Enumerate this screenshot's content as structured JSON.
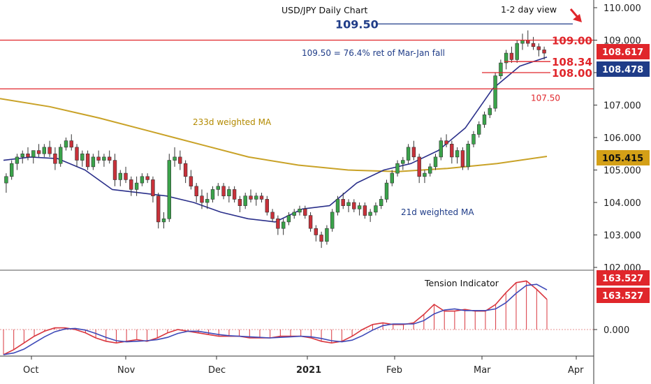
{
  "chart_data": {
    "type": "candlestick",
    "title": "USD/JPY Daily Chart",
    "subtitle": "1-2 day view",
    "x_ticks": [
      "Oct",
      "Nov",
      "Dec",
      "2021",
      "Feb",
      "Mar",
      "Apr"
    ],
    "y_ticks": [
      "102.000",
      "103.000",
      "104.000",
      "105.000",
      "106.000",
      "107.000",
      "108.000",
      "109.000",
      "110.000"
    ],
    "ylim": [
      101.9,
      110.3
    ],
    "levels": [
      {
        "label": "109.50",
        "value": 109.5,
        "color": "#1f3c88"
      },
      {
        "label": "109.00",
        "value": 109.0,
        "color": "#e0262b"
      },
      {
        "label": "108.34",
        "value": 108.34,
        "color": "#e0262b"
      },
      {
        "label": "108.00",
        "value": 108.0,
        "color": "#e0262b"
      },
      {
        "label": "107.50",
        "value": 107.5,
        "color": "#e0262b"
      }
    ],
    "annotations": [
      "109.50 = 76.4% ret of Mar-Jan fall",
      "233d weighted MA",
      "21d weighted MA"
    ],
    "price_tags": [
      {
        "label": "108.617",
        "value": 108.617,
        "color": "#e0262b"
      },
      {
        "label": "108.478",
        "value": 108.478,
        "color": "#1f3c88"
      },
      {
        "label": "105.415",
        "value": 105.415,
        "color": "#d4a017"
      }
    ],
    "ohlc": [
      [
        104.6,
        104.9,
        104.3,
        104.8
      ],
      [
        104.8,
        105.3,
        104.7,
        105.2
      ],
      [
        105.2,
        105.5,
        105.0,
        105.4
      ],
      [
        105.4,
        105.6,
        105.2,
        105.5
      ],
      [
        105.5,
        105.7,
        105.3,
        105.4
      ],
      [
        105.4,
        105.6,
        105.2,
        105.6
      ],
      [
        105.6,
        105.8,
        105.4,
        105.5
      ],
      [
        105.5,
        105.8,
        105.4,
        105.7
      ],
      [
        105.7,
        105.9,
        105.4,
        105.5
      ],
      [
        105.5,
        105.7,
        105.0,
        105.2
      ],
      [
        105.2,
        105.8,
        105.1,
        105.7
      ],
      [
        105.7,
        106.0,
        105.6,
        105.9
      ],
      [
        105.9,
        106.1,
        105.6,
        105.7
      ],
      [
        105.7,
        105.8,
        105.1,
        105.3
      ],
      [
        105.3,
        105.6,
        105.1,
        105.5
      ],
      [
        105.5,
        105.6,
        105.0,
        105.1
      ],
      [
        105.1,
        105.5,
        105.0,
        105.4
      ],
      [
        105.4,
        105.6,
        105.2,
        105.3
      ],
      [
        105.3,
        105.5,
        105.1,
        105.4
      ],
      [
        105.4,
        105.6,
        105.2,
        105.3
      ],
      [
        105.3,
        105.5,
        104.5,
        104.7
      ],
      [
        104.7,
        105.0,
        104.5,
        104.9
      ],
      [
        104.9,
        105.1,
        104.6,
        104.7
      ],
      [
        104.7,
        104.8,
        104.2,
        104.4
      ],
      [
        104.4,
        104.8,
        104.2,
        104.6
      ],
      [
        104.6,
        104.9,
        104.5,
        104.8
      ],
      [
        104.8,
        104.9,
        104.6,
        104.7
      ],
      [
        104.7,
        104.8,
        104.0,
        104.2
      ],
      [
        104.2,
        104.3,
        103.2,
        103.4
      ],
      [
        103.4,
        103.7,
        103.2,
        103.5
      ],
      [
        103.5,
        105.5,
        103.4,
        105.3
      ],
      [
        105.3,
        105.7,
        105.1,
        105.4
      ],
      [
        105.4,
        105.6,
        105.0,
        105.2
      ],
      [
        105.2,
        105.3,
        104.6,
        104.8
      ],
      [
        104.8,
        105.0,
        104.4,
        104.5
      ],
      [
        104.5,
        104.6,
        104.0,
        104.2
      ],
      [
        104.2,
        104.4,
        103.8,
        104.0
      ],
      [
        104.0,
        104.3,
        103.8,
        104.1
      ],
      [
        104.1,
        104.5,
        104.0,
        104.4
      ],
      [
        104.4,
        104.6,
        104.2,
        104.5
      ],
      [
        104.5,
        104.6,
        104.1,
        104.2
      ],
      [
        104.2,
        104.5,
        104.0,
        104.4
      ],
      [
        104.4,
        104.5,
        104.0,
        104.1
      ],
      [
        104.1,
        104.2,
        103.7,
        103.9
      ],
      [
        103.9,
        104.3,
        103.8,
        104.2
      ],
      [
        104.2,
        104.4,
        104.0,
        104.1
      ],
      [
        104.1,
        104.3,
        103.9,
        104.2
      ],
      [
        104.2,
        104.3,
        104.0,
        104.1
      ],
      [
        104.1,
        104.2,
        103.6,
        103.7
      ],
      [
        103.7,
        103.8,
        103.4,
        103.5
      ],
      [
        103.5,
        103.6,
        103.0,
        103.2
      ],
      [
        103.2,
        103.5,
        103.0,
        103.4
      ],
      [
        103.4,
        103.7,
        103.3,
        103.6
      ],
      [
        103.6,
        103.8,
        103.5,
        103.7
      ],
      [
        103.7,
        103.9,
        103.6,
        103.8
      ],
      [
        103.8,
        103.9,
        103.5,
        103.6
      ],
      [
        103.6,
        103.7,
        103.1,
        103.2
      ],
      [
        103.2,
        103.3,
        102.8,
        103.0
      ],
      [
        103.0,
        103.1,
        102.6,
        102.8
      ],
      [
        102.8,
        103.3,
        102.7,
        103.2
      ],
      [
        103.2,
        103.8,
        103.1,
        103.7
      ],
      [
        103.7,
        104.2,
        103.6,
        104.1
      ],
      [
        104.1,
        104.3,
        103.8,
        103.9
      ],
      [
        103.9,
        104.1,
        103.7,
        104.0
      ],
      [
        104.0,
        104.1,
        103.7,
        103.8
      ],
      [
        103.8,
        104.0,
        103.6,
        103.9
      ],
      [
        103.9,
        104.0,
        103.5,
        103.6
      ],
      [
        103.6,
        103.8,
        103.4,
        103.7
      ],
      [
        103.7,
        104.0,
        103.6,
        103.9
      ],
      [
        103.9,
        104.2,
        103.8,
        104.1
      ],
      [
        104.1,
        104.7,
        104.0,
        104.6
      ],
      [
        104.6,
        105.0,
        104.5,
        104.9
      ],
      [
        104.9,
        105.3,
        104.8,
        105.2
      ],
      [
        105.2,
        105.4,
        105.0,
        105.3
      ],
      [
        105.3,
        105.8,
        105.2,
        105.7
      ],
      [
        105.7,
        105.9,
        105.3,
        105.4
      ],
      [
        105.4,
        105.5,
        104.6,
        104.8
      ],
      [
        104.8,
        105.0,
        104.6,
        104.9
      ],
      [
        104.9,
        105.2,
        104.8,
        105.1
      ],
      [
        105.1,
        105.5,
        105.0,
        105.4
      ],
      [
        105.4,
        106.0,
        105.3,
        105.9
      ],
      [
        105.9,
        106.1,
        105.7,
        105.8
      ],
      [
        105.8,
        105.9,
        105.2,
        105.4
      ],
      [
        105.4,
        105.7,
        105.2,
        105.6
      ],
      [
        105.6,
        105.7,
        105.0,
        105.1
      ],
      [
        105.1,
        105.9,
        105.0,
        105.8
      ],
      [
        105.8,
        106.2,
        105.7,
        106.1
      ],
      [
        106.1,
        106.5,
        106.0,
        106.4
      ],
      [
        106.4,
        106.8,
        106.3,
        106.7
      ],
      [
        106.7,
        107.0,
        106.6,
        106.9
      ],
      [
        106.9,
        108.0,
        106.8,
        107.9
      ],
      [
        107.9,
        108.4,
        107.8,
        108.3
      ],
      [
        108.3,
        108.7,
        108.1,
        108.6
      ],
      [
        108.6,
        108.8,
        108.3,
        108.4
      ],
      [
        108.4,
        109.0,
        108.3,
        108.9
      ],
      [
        108.9,
        109.2,
        108.7,
        109.0
      ],
      [
        109.0,
        109.3,
        108.8,
        108.9
      ],
      [
        108.9,
        109.1,
        108.7,
        108.8
      ],
      [
        108.8,
        108.9,
        108.5,
        108.7
      ],
      [
        108.7,
        108.8,
        108.4,
        108.6
      ]
    ],
    "series": [
      {
        "name": "233d weighted MA",
        "color": "#c9a227",
        "values": [
          107.2,
          106.95,
          106.6,
          106.2,
          105.8,
          105.4,
          105.15,
          105.0,
          104.95,
          105.05,
          105.2,
          105.42
        ]
      },
      {
        "name": "21d weighted MA",
        "color": "#2a2f8a",
        "values": [
          105.3,
          105.4,
          105.35,
          105.0,
          104.4,
          104.3,
          104.2,
          104.0,
          103.7,
          103.5,
          103.4,
          103.8,
          103.9,
          104.6,
          105.0,
          105.2,
          105.6,
          106.3,
          107.5,
          108.2,
          108.48
        ]
      }
    ],
    "indicator": {
      "name": "Tension Indicator",
      "tags": [
        "163.527",
        "163.527"
      ],
      "zero_label": "0.000",
      "values": [
        -0.75,
        -0.6,
        -0.4,
        -0.2,
        -0.05,
        0.05,
        0.05,
        0.0,
        -0.1,
        -0.25,
        -0.35,
        -0.4,
        -0.35,
        -0.3,
        -0.35,
        -0.25,
        -0.1,
        0.0,
        -0.05,
        -0.1,
        -0.15,
        -0.2,
        -0.2,
        -0.2,
        -0.25,
        -0.25,
        -0.25,
        -0.2,
        -0.2,
        -0.2,
        -0.25,
        -0.35,
        -0.4,
        -0.35,
        -0.2,
        0.0,
        0.15,
        0.2,
        0.15,
        0.15,
        0.2,
        0.45,
        0.75,
        0.55,
        0.55,
        0.6,
        0.55,
        0.55,
        0.75,
        1.1,
        1.4,
        1.45,
        1.2,
        0.9
      ]
    }
  }
}
